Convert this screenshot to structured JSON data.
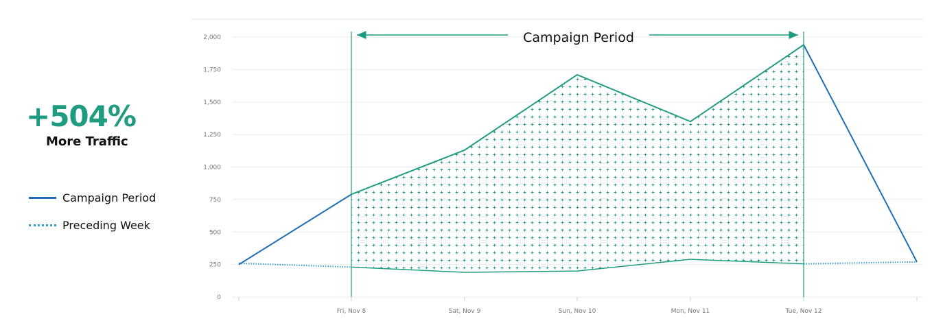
{
  "stat": {
    "value": "+504%",
    "label": "More Traffic"
  },
  "legend": [
    {
      "label": "Campaign Period",
      "style": "solid",
      "color": "#1f6db5"
    },
    {
      "label": "Preceding Week",
      "style": "dotted",
      "color": "#2e9fd3"
    }
  ],
  "chart_data": {
    "type": "line",
    "x_ticks": [
      "Fri, Nov 8",
      "Sat, Nov 9",
      "Sun, Nov 10",
      "Mon, Nov 11",
      "Tue, Nov 12"
    ],
    "y_tick_labels": [
      "0",
      "250",
      "500",
      "750",
      "1,000",
      "1,250",
      "1,500",
      "1,750",
      "2,000"
    ],
    "ylim": [
      0,
      2000
    ],
    "grid": true,
    "series": [
      {
        "name": "Campaign Period",
        "style": "solid",
        "color": "#1f6db5",
        "values": [
          250,
          790,
          1130,
          1710,
          1350,
          1940,
          270
        ]
      },
      {
        "name": "Preceding Week",
        "style": "dotted",
        "color": "#2e9fd3",
        "values": [
          260,
          230,
          190,
          200,
          290,
          255,
          270
        ]
      }
    ],
    "annotation": {
      "label": "Campaign Period",
      "from": "Fri, Nov 8",
      "to": "Tue, Nov 12",
      "color": "#1f9c7f"
    }
  }
}
